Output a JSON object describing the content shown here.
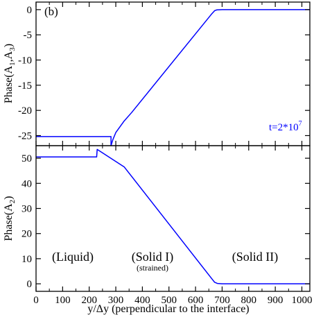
{
  "chart_data": [
    {
      "type": "line",
      "panel_label": "(b)",
      "ylabel_main": "Phase(A",
      "ylabel_sub1": "1",
      "ylabel_sep": ",A",
      "ylabel_sub2": "3",
      "ylabel_close": ")",
      "xlim": [
        0,
        1030
      ],
      "ylim": [
        -27,
        1.5
      ],
      "yticks": [
        0,
        -5,
        -10,
        -15,
        -20,
        -25
      ],
      "xticks": [
        0,
        100,
        200,
        300,
        400,
        500,
        600,
        700,
        800,
        900,
        1000
      ],
      "annotation": {
        "base": "t=2*10",
        "exp": "7",
        "color": "#0000ff"
      },
      "series": [
        {
          "color": "#0000ff",
          "x": [
            0,
            282,
            282,
            289,
            300,
            330,
            360,
            660,
            672,
            680,
            700,
            1030
          ],
          "y": [
            -25.2,
            -25.2,
            -27,
            -25.8,
            -24.4,
            -22.2,
            -20.4,
            -0.9,
            -0.2,
            -0.05,
            0,
            0
          ]
        }
      ]
    },
    {
      "type": "line",
      "ylabel_main": "Phase(A",
      "ylabel_sub": "2",
      "ylabel_close": ")",
      "xlabel": "y/Δy (perpendicular to the interface)",
      "xlim": [
        0,
        1030
      ],
      "ylim": [
        -3,
        55
      ],
      "yticks": [
        0,
        10,
        20,
        30,
        40,
        50
      ],
      "xticks": [
        0,
        100,
        200,
        300,
        400,
        500,
        600,
        700,
        800,
        900,
        1000
      ],
      "annotations": [
        {
          "text": "(Liquid)",
          "x": 75,
          "y": 11
        },
        {
          "text": "(Solid I)",
          "x": 365,
          "y": 11
        },
        {
          "text": "(strained)",
          "x": 365,
          "y": 6
        },
        {
          "text": "(Solid II)",
          "x": 790,
          "y": 11
        }
      ],
      "series": [
        {
          "color": "#0000ff",
          "x": [
            0,
            228,
            230,
            332,
            665,
            672,
            682,
            700,
            1030
          ],
          "y": [
            50.5,
            50.5,
            53.5,
            46.5,
            1.5,
            0.6,
            0.15,
            0,
            0
          ]
        }
      ]
    }
  ]
}
